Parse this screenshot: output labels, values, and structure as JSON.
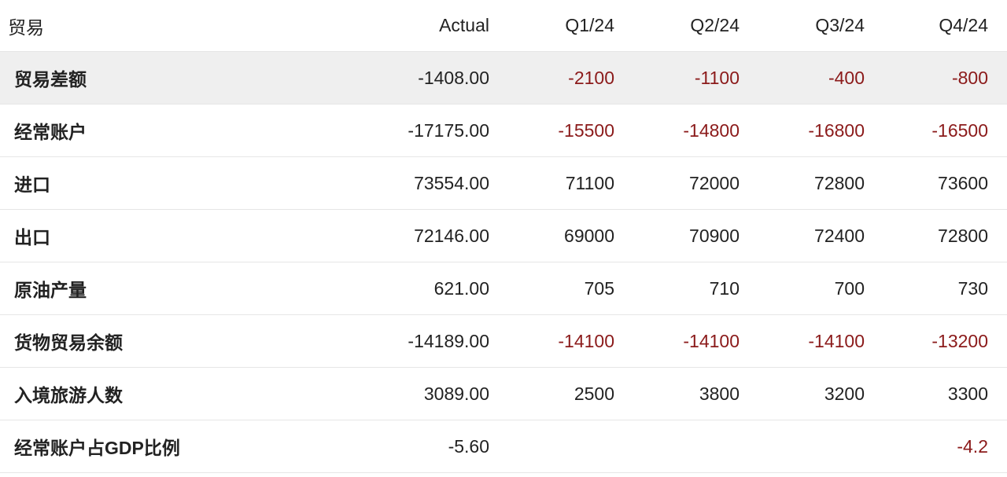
{
  "header": {
    "label": "贸易",
    "actual": "Actual",
    "quarters": [
      "Q1/24",
      "Q2/24",
      "Q3/24",
      "Q4/24"
    ]
  },
  "colors": {
    "negative_forecast": "#8b1a1a",
    "highlight_row_bg": "#efefef",
    "text": "#222222"
  },
  "rows": [
    {
      "label": "贸易差额",
      "actual": "-1408.00",
      "q": [
        "-2100",
        "-1100",
        "-400",
        "-800"
      ],
      "neg": [
        true,
        true,
        true,
        true
      ],
      "highlight": true
    },
    {
      "label": "经常账户",
      "actual": "-17175.00",
      "q": [
        "-15500",
        "-14800",
        "-16800",
        "-16500"
      ],
      "neg": [
        true,
        true,
        true,
        true
      ]
    },
    {
      "label": "进口",
      "actual": "73554.00",
      "q": [
        "71100",
        "72000",
        "72800",
        "73600"
      ],
      "neg": [
        false,
        false,
        false,
        false
      ]
    },
    {
      "label": "出口",
      "actual": "72146.00",
      "q": [
        "69000",
        "70900",
        "72400",
        "72800"
      ],
      "neg": [
        false,
        false,
        false,
        false
      ]
    },
    {
      "label": "原油产量",
      "actual": "621.00",
      "q": [
        "705",
        "710",
        "700",
        "730"
      ],
      "neg": [
        false,
        false,
        false,
        false
      ]
    },
    {
      "label": "货物贸易余额",
      "actual": "-14189.00",
      "q": [
        "-14100",
        "-14100",
        "-14100",
        "-13200"
      ],
      "neg": [
        true,
        true,
        true,
        true
      ]
    },
    {
      "label": "入境旅游人数",
      "actual": "3089.00",
      "q": [
        "2500",
        "3800",
        "3200",
        "3300"
      ],
      "neg": [
        false,
        false,
        false,
        false
      ]
    },
    {
      "label": "经常账户占GDP比例",
      "actual": "-5.60",
      "q": [
        "",
        "",
        "",
        "-4.2"
      ],
      "neg": [
        false,
        false,
        false,
        true
      ]
    }
  ]
}
